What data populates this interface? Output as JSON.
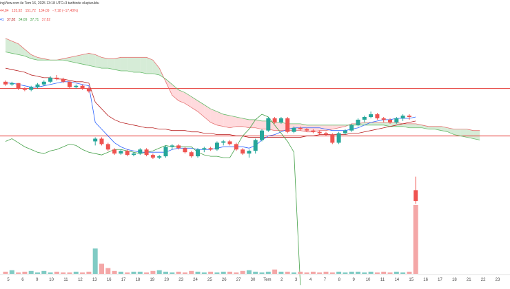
{
  "header": {
    "line1": "ingView.com ile Tem 16, 2025 13:18 UTC+3 tarihinde oluşturuldu",
    "ohlc": [
      "44,84",
      "135,92",
      "151,72",
      "134,09",
      "−7,18 (−17,40%)"
    ],
    "indicators": [
      "41",
      "37,82",
      "34,09",
      "37,71",
      "37,82"
    ]
  },
  "colors": {
    "up": "#26a69a",
    "down": "#ef5350",
    "conversion": "#2962ff",
    "base": "#b71c1c",
    "lagging": "#43a047",
    "cloud_bull": "#c8e6c9",
    "cloud_bear": "#ffcdd2",
    "hline": "#e53935",
    "vol_up": "#80cbc4",
    "vol_down": "#f4a7a7"
  },
  "chart_data": {
    "type": "candlestick",
    "x_ticks": [
      "5",
      "6",
      "9",
      "10",
      "11",
      "12",
      "13",
      "16",
      "17",
      "18",
      "19",
      "20",
      "23",
      "24",
      "25",
      "26",
      "27",
      "30",
      "Tem",
      "2",
      "3",
      "4",
      "7",
      "8",
      "9",
      "10",
      "11",
      "14",
      "15",
      "16",
      "17",
      "18",
      "21",
      "22",
      "23"
    ],
    "candles": [
      {
        "o": 110,
        "h": 111,
        "l": 107,
        "c": 108
      },
      {
        "o": 108,
        "h": 110,
        "l": 107,
        "c": 109
      },
      {
        "o": 109,
        "h": 109,
        "l": 104,
        "c": 105
      },
      {
        "o": 105,
        "h": 106,
        "l": 103,
        "c": 104
      },
      {
        "o": 104,
        "h": 107,
        "l": 103,
        "c": 106
      },
      {
        "o": 106,
        "h": 109,
        "l": 105,
        "c": 108
      },
      {
        "o": 108,
        "h": 111,
        "l": 107,
        "c": 110
      },
      {
        "o": 110,
        "h": 114,
        "l": 109,
        "c": 113
      },
      {
        "o": 113,
        "h": 115,
        "l": 111,
        "c": 112
      },
      {
        "o": 112,
        "h": 113,
        "l": 109,
        "c": 110
      },
      {
        "o": 110,
        "h": 110,
        "l": 105,
        "c": 106
      },
      {
        "o": 106,
        "h": 108,
        "l": 105,
        "c": 107
      },
      {
        "o": 107,
        "h": 108,
        "l": 104,
        "c": 105
      },
      {
        "o": 105,
        "h": 106,
        "l": 102,
        "c": 103
      },
      {
        "o": 66,
        "h": 69,
        "l": 63,
        "c": 68
      },
      {
        "o": 68,
        "h": 69,
        "l": 63,
        "c": 64
      },
      {
        "o": 64,
        "h": 65,
        "l": 59,
        "c": 60
      },
      {
        "o": 60,
        "h": 61,
        "l": 56,
        "c": 57
      },
      {
        "o": 57,
        "h": 60,
        "l": 56,
        "c": 59
      },
      {
        "o": 59,
        "h": 60,
        "l": 55,
        "c": 56
      },
      {
        "o": 56,
        "h": 58,
        "l": 55,
        "c": 57
      },
      {
        "o": 57,
        "h": 61,
        "l": 56,
        "c": 60
      },
      {
        "o": 60,
        "h": 61,
        "l": 55,
        "c": 56
      },
      {
        "o": 56,
        "h": 57,
        "l": 53,
        "c": 54
      },
      {
        "o": 54,
        "h": 56,
        "l": 53,
        "c": 55
      },
      {
        "o": 55,
        "h": 63,
        "l": 54,
        "c": 62
      },
      {
        "o": 62,
        "h": 64,
        "l": 60,
        "c": 63
      },
      {
        "o": 63,
        "h": 64,
        "l": 60,
        "c": 61
      },
      {
        "o": 61,
        "h": 62,
        "l": 57,
        "c": 58
      },
      {
        "o": 58,
        "h": 59,
        "l": 54,
        "c": 55
      },
      {
        "o": 55,
        "h": 61,
        "l": 54,
        "c": 60
      },
      {
        "o": 60,
        "h": 62,
        "l": 58,
        "c": 61
      },
      {
        "o": 61,
        "h": 62,
        "l": 59,
        "c": 60
      },
      {
        "o": 60,
        "h": 66,
        "l": 59,
        "c": 65
      },
      {
        "o": 65,
        "h": 67,
        "l": 63,
        "c": 66
      },
      {
        "o": 66,
        "h": 67,
        "l": 63,
        "c": 64
      },
      {
        "o": 64,
        "h": 65,
        "l": 59,
        "c": 60
      },
      {
        "o": 60,
        "h": 61,
        "l": 56,
        "c": 57
      },
      {
        "o": 57,
        "h": 60,
        "l": 54,
        "c": 59
      },
      {
        "o": 59,
        "h": 68,
        "l": 57,
        "c": 67
      },
      {
        "o": 67,
        "h": 75,
        "l": 66,
        "c": 74
      },
      {
        "o": 74,
        "h": 84,
        "l": 73,
        "c": 83
      },
      {
        "o": 83,
        "h": 84,
        "l": 79,
        "c": 80
      },
      {
        "o": 80,
        "h": 84,
        "l": 79,
        "c": 83
      },
      {
        "o": 83,
        "h": 84,
        "l": 72,
        "c": 73
      },
      {
        "o": 73,
        "h": 77,
        "l": 72,
        "c": 76
      },
      {
        "o": 76,
        "h": 77,
        "l": 74,
        "c": 75
      },
      {
        "o": 75,
        "h": 76,
        "l": 73,
        "c": 74
      },
      {
        "o": 74,
        "h": 75,
        "l": 72,
        "c": 73
      },
      {
        "o": 73,
        "h": 74,
        "l": 71,
        "c": 72
      },
      {
        "o": 72,
        "h": 73,
        "l": 70,
        "c": 71
      },
      {
        "o": 71,
        "h": 72,
        "l": 64,
        "c": 65
      },
      {
        "o": 65,
        "h": 73,
        "l": 64,
        "c": 72
      },
      {
        "o": 72,
        "h": 75,
        "l": 71,
        "c": 74
      },
      {
        "o": 74,
        "h": 79,
        "l": 73,
        "c": 78
      },
      {
        "o": 78,
        "h": 83,
        "l": 77,
        "c": 82
      },
      {
        "o": 82,
        "h": 85,
        "l": 80,
        "c": 84
      },
      {
        "o": 84,
        "h": 88,
        "l": 83,
        "c": 86
      },
      {
        "o": 86,
        "h": 87,
        "l": 82,
        "c": 83
      },
      {
        "o": 83,
        "h": 84,
        "l": 80,
        "c": 82
      },
      {
        "o": 82,
        "h": 83,
        "l": 79,
        "c": 80
      },
      {
        "o": 80,
        "h": 84,
        "l": 79,
        "c": 83
      },
      {
        "o": 83,
        "h": 86,
        "l": 81,
        "c": 85
      },
      {
        "o": 85,
        "h": 86,
        "l": 82,
        "c": 84
      },
      {
        "o": 30,
        "h": 40,
        "l": 20,
        "c": 22
      }
    ],
    "volume": [
      3,
      5,
      2,
      3,
      4,
      2,
      4,
      2,
      3,
      2,
      2,
      3,
      2,
      3,
      35,
      14,
      8,
      4,
      3,
      2,
      3,
      3,
      2,
      4,
      5,
      3,
      2,
      3,
      2,
      4,
      3,
      2,
      3,
      2,
      3,
      3,
      2,
      4,
      5,
      3,
      2,
      3,
      6,
      3,
      3,
      2,
      3,
      2,
      3,
      2,
      3,
      2,
      3,
      2,
      3,
      3,
      2,
      3,
      2,
      3,
      2,
      3,
      2,
      3,
      95
    ],
    "conversion_line": [
      109,
      109,
      108,
      107,
      106,
      106,
      107,
      108,
      109,
      110,
      110,
      109,
      108,
      107,
      80,
      75,
      70,
      65,
      62,
      60,
      59,
      58,
      58,
      58,
      58,
      58,
      60,
      61,
      61,
      61,
      60,
      60,
      60,
      61,
      62,
      62,
      62,
      62,
      61,
      63,
      67,
      70,
      71,
      73,
      75,
      76,
      76,
      76,
      76,
      76,
      75,
      74,
      74,
      74,
      75,
      76,
      78,
      80,
      81,
      82,
      82,
      83,
      83,
      83,
      84
    ],
    "base_line": [
      120,
      119,
      118,
      117,
      115,
      114,
      113,
      113,
      112,
      112,
      111,
      110,
      110,
      109,
      95,
      90,
      85,
      82,
      80,
      79,
      78,
      77,
      76,
      76,
      75,
      75,
      74,
      74,
      74,
      73,
      73,
      72,
      72,
      71,
      71,
      71,
      70,
      70,
      69,
      69,
      69,
      69,
      69,
      69,
      69,
      69,
      69,
      70,
      70,
      71,
      71,
      71,
      71,
      71,
      72,
      72,
      73,
      74,
      75,
      76,
      77,
      78,
      79,
      80,
      81
    ],
    "lagging_span": [
      66,
      68,
      65,
      62,
      60,
      58,
      57,
      59,
      60,
      62,
      64,
      63,
      60,
      58,
      57,
      56,
      58,
      60,
      60,
      59,
      58,
      57,
      58,
      59,
      61,
      63,
      62,
      62,
      62,
      62,
      58,
      56,
      55,
      55,
      54,
      54,
      62,
      70,
      75,
      82,
      86,
      84,
      78,
      72,
      66,
      58,
      -40
    ],
    "cloud_a": [
      142,
      140,
      138,
      134,
      130,
      128,
      127,
      126,
      126,
      127,
      128,
      129,
      130,
      131,
      130,
      128,
      127,
      127,
      128,
      128,
      128,
      128,
      128,
      126,
      120,
      110,
      100,
      96,
      94,
      91,
      88,
      84,
      80,
      78,
      77,
      76,
      77,
      77,
      76,
      76,
      75,
      75,
      74,
      74,
      74,
      74,
      74,
      73,
      73,
      74,
      74,
      75,
      76,
      77,
      79,
      79,
      80,
      80,
      80,
      80,
      80,
      80,
      79,
      79,
      79,
      78,
      77,
      77,
      77,
      76,
      75,
      75,
      75,
      74,
      74
    ],
    "cloud_b": [
      132,
      131,
      130,
      129,
      127,
      126,
      126,
      126,
      126,
      126,
      125,
      124,
      123,
      122,
      121,
      120,
      120,
      119,
      118,
      118,
      117,
      117,
      116,
      116,
      115,
      112,
      108,
      104,
      102,
      99,
      96,
      93,
      90,
      88,
      86,
      85,
      84,
      83,
      82,
      82,
      81,
      81,
      80,
      80,
      79,
      79,
      79,
      78,
      78,
      78,
      78,
      78,
      78,
      78,
      78,
      78,
      78,
      78,
      78,
      78,
      77,
      77,
      77,
      76,
      76,
      76,
      75,
      75,
      74,
      73,
      71,
      70,
      69,
      68,
      67
    ],
    "hlines": [
      105,
      70
    ],
    "y_range": [
      18,
      150
    ]
  }
}
